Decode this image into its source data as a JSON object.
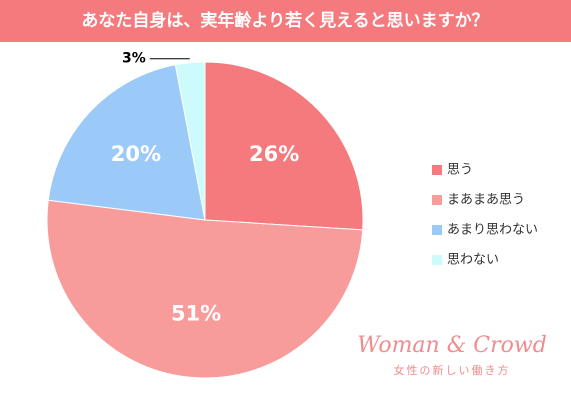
{
  "chart_data": {
    "type": "pie",
    "title": "あなた自身は、実年齢より若く見えると思いますか？",
    "categories": [
      "思う",
      "まあまあ思う",
      "あまり思わない",
      "思わない"
    ],
    "values": [
      26,
      51,
      20,
      3
    ],
    "value_labels": [
      "26%",
      "51%",
      "20%",
      "3%"
    ],
    "colors": [
      "#f47a7d",
      "#f89b9b",
      "#9ccaf8",
      "#cdfbfb"
    ],
    "legend": "right",
    "annotations": [
      "Woman & Crowd",
      "女性の新しい働き方"
    ]
  }
}
